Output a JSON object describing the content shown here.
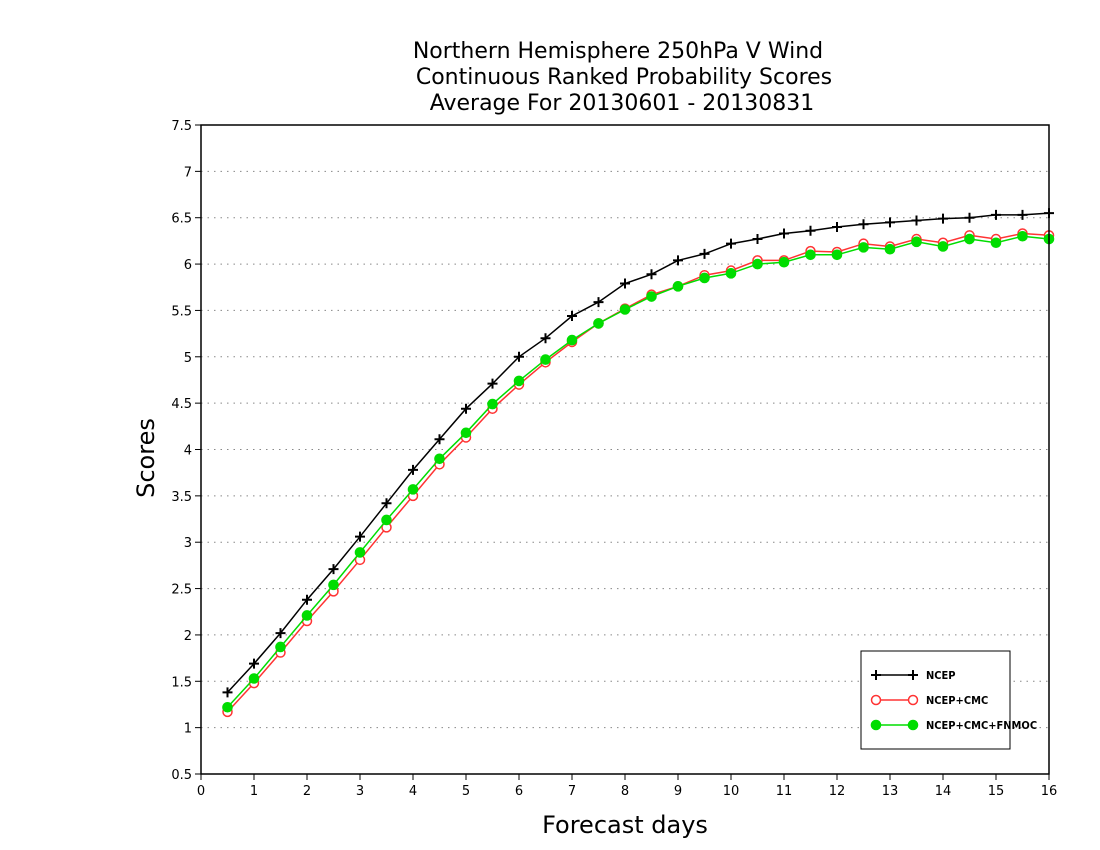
{
  "chart_data": {
    "type": "line",
    "title_lines": [
      "Northern Hemisphere 250hPa V Wind",
      "Continuous Ranked Probability Scores",
      "Average For 20130601 - 20130831"
    ],
    "xlabel": "Forecast days",
    "ylabel": "Scores",
    "xlim": [
      0,
      16
    ],
    "ylim": [
      0.5,
      7.5
    ],
    "xticks": [
      0,
      1,
      2,
      3,
      4,
      5,
      6,
      7,
      8,
      9,
      10,
      11,
      12,
      13,
      14,
      15,
      16
    ],
    "yticks": [
      0.5,
      1,
      1.5,
      2,
      2.5,
      3,
      3.5,
      4,
      4.5,
      5,
      5.5,
      6,
      6.5,
      7,
      7.5
    ],
    "ytick_labels": [
      "0.5",
      "1",
      "1.5",
      "2",
      "2.5",
      "3",
      "3.5",
      "4",
      "4.5",
      "5",
      "5.5",
      "6",
      "6.5",
      "7",
      "7.5"
    ],
    "grid": "horizontal-dotted",
    "legend_position": "bottom-right",
    "x": [
      0.5,
      1,
      1.5,
      2,
      2.5,
      3,
      3.5,
      4,
      4.5,
      5,
      5.5,
      6,
      6.5,
      7,
      7.5,
      8,
      8.5,
      9,
      9.5,
      10,
      10.5,
      11,
      11.5,
      12,
      12.5,
      13,
      13.5,
      14,
      14.5,
      15,
      15.5,
      16
    ],
    "series": [
      {
        "name": "NCEP",
        "color": "#000000",
        "marker": "plus",
        "values": [
          1.38,
          1.69,
          2.02,
          2.38,
          2.71,
          3.06,
          3.42,
          3.78,
          4.11,
          4.44,
          4.71,
          5.0,
          5.2,
          5.44,
          5.59,
          5.79,
          5.89,
          6.04,
          6.11,
          6.22,
          6.27,
          6.33,
          6.36,
          6.4,
          6.43,
          6.45,
          6.47,
          6.49,
          6.5,
          6.53,
          6.53,
          6.55
        ]
      },
      {
        "name": "NCEP+CMC",
        "color": "#ff3333",
        "marker": "open-circle",
        "values": [
          1.17,
          1.48,
          1.81,
          2.15,
          2.47,
          2.81,
          3.16,
          3.5,
          3.84,
          4.13,
          4.44,
          4.7,
          4.94,
          5.16,
          5.36,
          5.52,
          5.67,
          5.76,
          5.88,
          5.93,
          6.04,
          6.04,
          6.14,
          6.13,
          6.22,
          6.19,
          6.27,
          6.23,
          6.31,
          6.27,
          6.33,
          6.31
        ]
      },
      {
        "name": "NCEP+CMC+FNMOC",
        "color": "#00dd00",
        "marker": "filled-circle",
        "values": [
          1.22,
          1.53,
          1.87,
          2.21,
          2.54,
          2.89,
          3.24,
          3.57,
          3.9,
          4.18,
          4.49,
          4.74,
          4.97,
          5.18,
          5.36,
          5.51,
          5.65,
          5.76,
          5.85,
          5.9,
          6.0,
          6.02,
          6.1,
          6.1,
          6.18,
          6.16,
          6.24,
          6.19,
          6.27,
          6.23,
          6.3,
          6.27
        ]
      }
    ]
  }
}
